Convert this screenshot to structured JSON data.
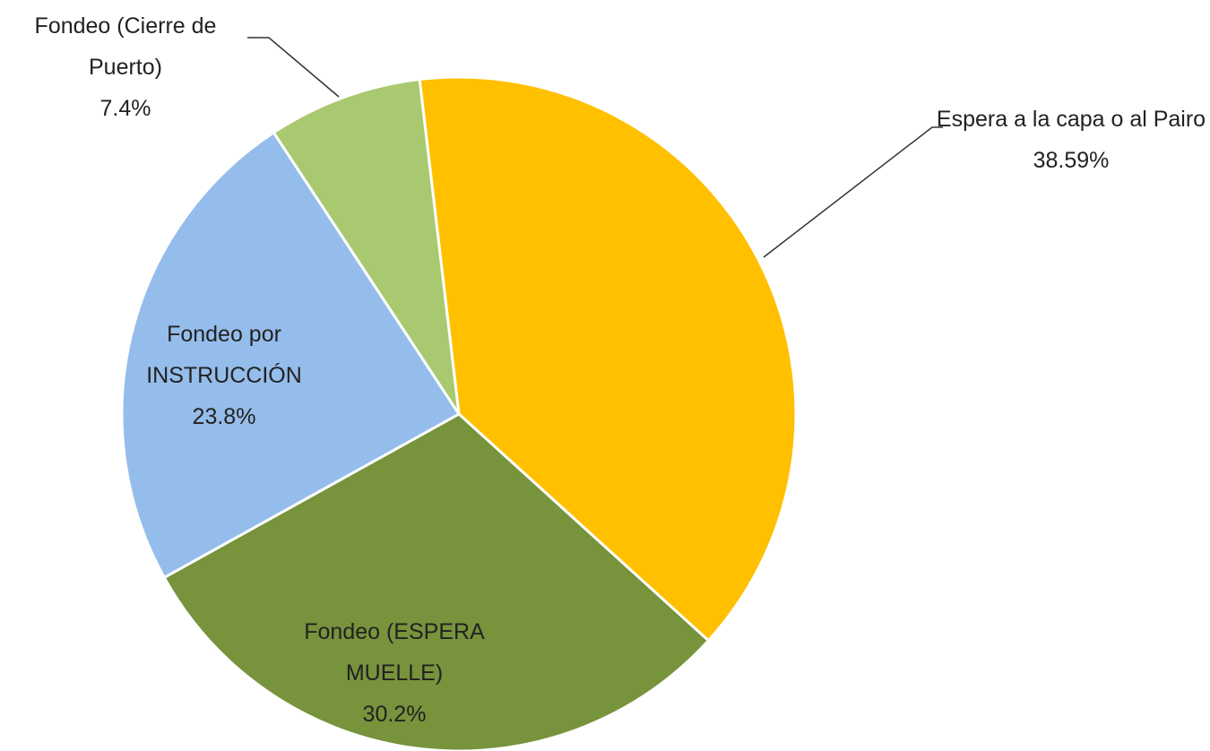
{
  "chart_data": {
    "type": "pie",
    "categories": [
      "Espera a la capa o al Pairo",
      "Fondeo (ESPERA MUELLE)",
      "Fondeo por INSTRUCCIÓN",
      "Fondeo (Cierre de Puerto)"
    ],
    "values": [
      38.59,
      30.2,
      23.8,
      7.4
    ],
    "value_labels": [
      "38.59%",
      "30.2%",
      "23.8%",
      "7.4%"
    ],
    "colors": [
      "#FFC000",
      "#77933C",
      "#95BDEB",
      "#A9C970"
    ]
  }
}
